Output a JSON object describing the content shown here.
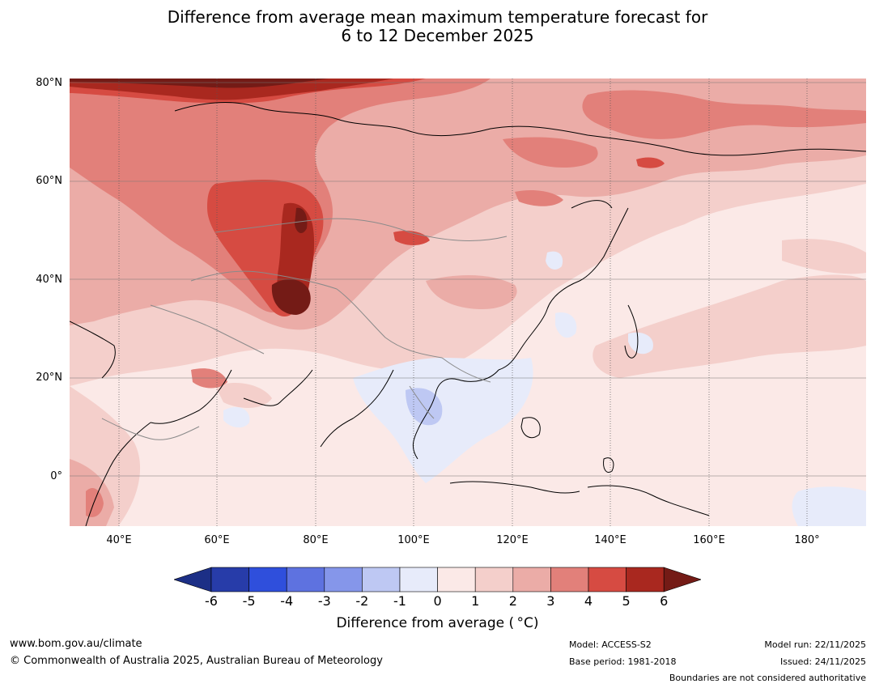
{
  "title": {
    "line1": "Difference from average mean maximum temperature forecast for",
    "line2": "6 to 12 December 2025"
  },
  "map": {
    "lat_labels": [
      "80°N",
      "60°N",
      "40°N",
      "20°N",
      "0°"
    ],
    "lon_labels": [
      "40°E",
      "60°E",
      "80°E",
      "100°E",
      "120°E",
      "140°E",
      "160°E",
      "180°"
    ],
    "extent": {
      "lon_min": 30,
      "lon_max": 192,
      "lat_min": -10,
      "lat_max": 81
    }
  },
  "colorbar": {
    "ticks": [
      "-6",
      "-5",
      "-4",
      "-3",
      "-2",
      "-1",
      "0",
      "1",
      "2",
      "3",
      "4",
      "5",
      "6"
    ],
    "colors": [
      "#1c2f86",
      "#273ca9",
      "#2f4fdc",
      "#5e72e0",
      "#8596ea",
      "#bec8f3",
      "#e7ebfa",
      "#fbe9e7",
      "#f4cfcb",
      "#ebaca7",
      "#e2807a",
      "#d64b42",
      "#a9281f",
      "#741b16"
    ],
    "label": "Difference from average ( °C)"
  },
  "footer": {
    "website": "www.bom.gov.au/climate",
    "copyright": "© Commonwealth of Australia 2025, Australian Bureau of Meteorology",
    "model": "Model: ACCESS-S2",
    "base_period": "Base period: 1981-2018",
    "model_run": "Model run: 22/11/2025",
    "issued": "Issued: 24/11/2025",
    "disclaimer": "Boundaries are not considered authoritative"
  }
}
